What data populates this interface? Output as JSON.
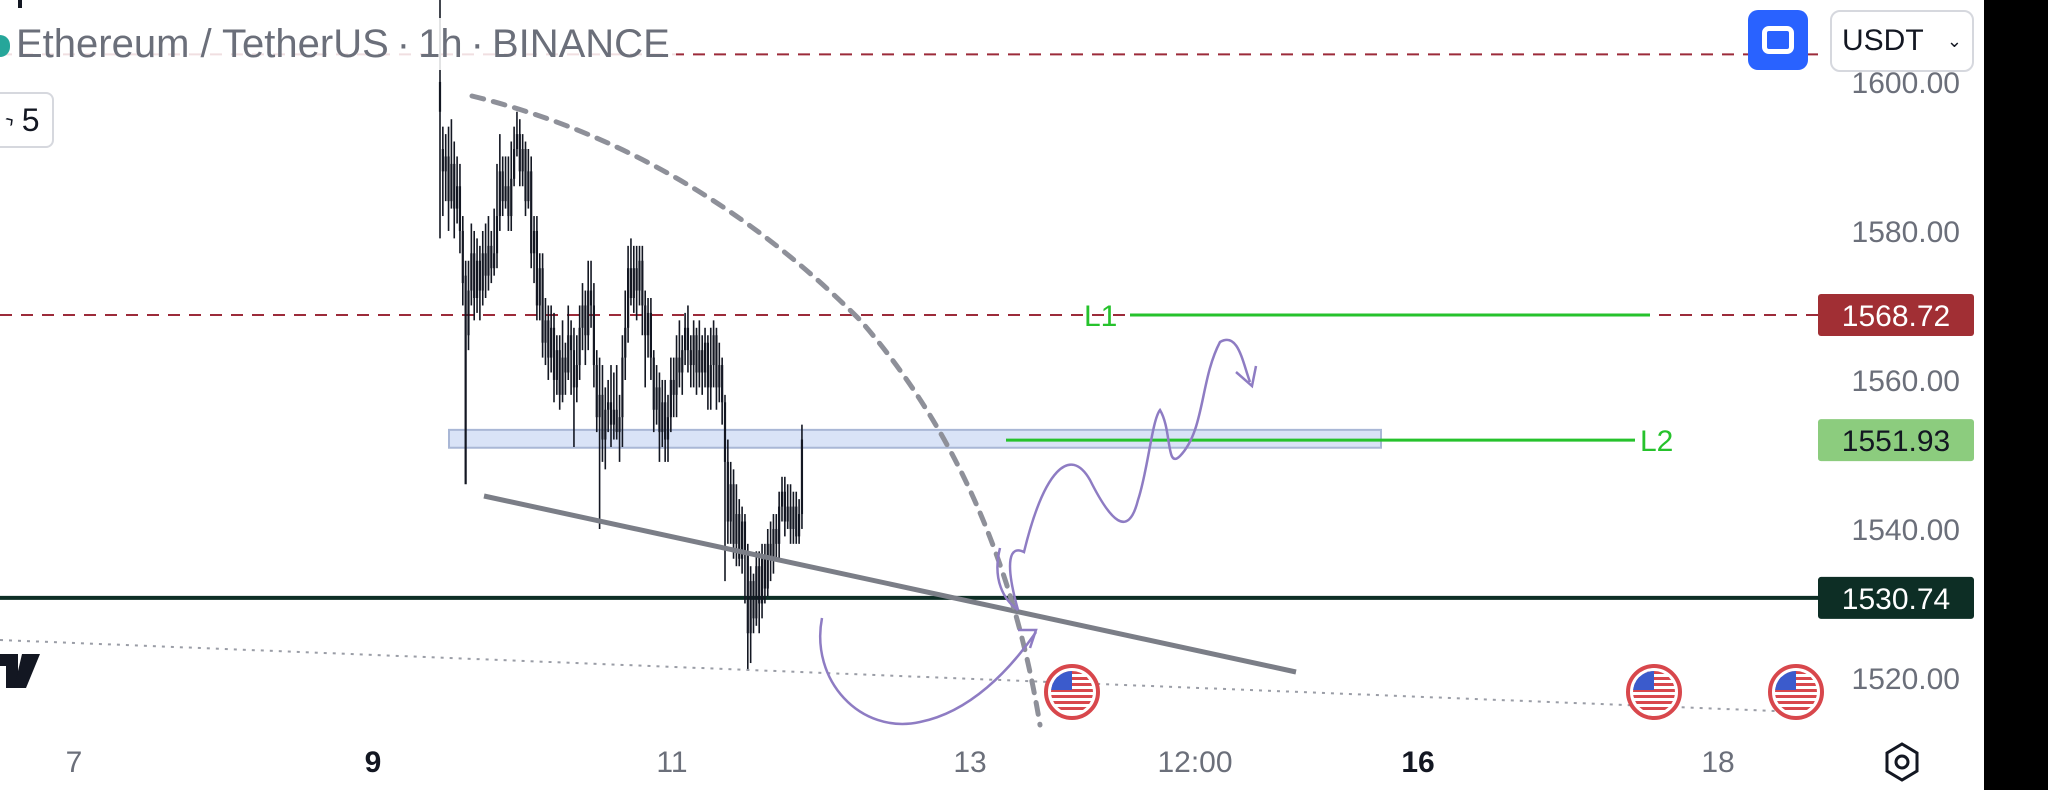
{
  "header": {
    "symbol": "Ethereum / TetherUS",
    "interval": "1h",
    "exchange": "BINANCE",
    "separator": "·",
    "interval_count": "5"
  },
  "toolbar": {
    "currency": "USDT",
    "fullscreen_icon": "fullscreen-icon",
    "settings_icon": "settings-icon",
    "dropdown_icon": "chevron-down-icon"
  },
  "colors": {
    "candle": "#131722",
    "grid_text": "#6b6f7a",
    "resistance_line": "#9c2b3a",
    "support_line": "#0d2e25",
    "target_line": "#26c22c",
    "trend_line": "#7b7e87",
    "projection": "#8e7cc3",
    "zone_fill": "#d9e3f7",
    "zone_stroke": "#a9b7d6",
    "label_red": "#a12f34",
    "label_green": "#8ccc7e",
    "label_dark": "#0d2e25"
  },
  "chart_data": {
    "type": "candlestick",
    "x_ticks": [
      {
        "label": "7",
        "bold": false
      },
      {
        "label": "9",
        "bold": true
      },
      {
        "label": "11",
        "bold": false
      },
      {
        "label": "13",
        "bold": false
      },
      {
        "label": "12:00",
        "bold": false
      },
      {
        "label": "16",
        "bold": true
      },
      {
        "label": "18",
        "bold": false
      }
    ],
    "y_ticks": [
      1520,
      1540,
      1560,
      1580,
      1600
    ],
    "ylim": [
      1512,
      1611
    ],
    "price_labels": [
      {
        "value": "1568.72",
        "style": "red"
      },
      {
        "value": "1551.93",
        "style": "green"
      },
      {
        "value": "1530.74",
        "style": "dark"
      }
    ],
    "horizontal_levels": [
      {
        "price": 1603.7,
        "style": "dashed",
        "color": "resistance_line"
      },
      {
        "price": 1568.72,
        "style": "dashed",
        "color": "resistance_line"
      },
      {
        "price": 1530.74,
        "style": "solid",
        "color": "support_line"
      }
    ],
    "targets": [
      {
        "name": "L1",
        "price": 1568.72
      },
      {
        "name": "L2",
        "price": 1551.93
      }
    ],
    "zone": {
      "low": 1550.9,
      "high": 1553.3
    },
    "events": [
      {
        "icon": "us-flag-icon"
      },
      {
        "icon": "us-flag-icon"
      },
      {
        "icon": "us-flag-icon"
      }
    ],
    "candles": [
      [
        1600,
        1596,
        1611,
        1579
      ],
      [
        1591,
        1588,
        1594,
        1582
      ],
      [
        1588,
        1590,
        1593,
        1584
      ],
      [
        1590,
        1584,
        1594,
        1580
      ],
      [
        1584,
        1589,
        1595,
        1583
      ],
      [
        1589,
        1583,
        1592,
        1579
      ],
      [
        1583,
        1586,
        1590,
        1581
      ],
      [
        1586,
        1580,
        1589,
        1577
      ],
      [
        1580,
        1573,
        1582,
        1570
      ],
      [
        1574,
        1546,
        1576,
        1547
      ],
      [
        1566,
        1572,
        1576,
        1564
      ],
      [
        1572,
        1577,
        1581,
        1570
      ],
      [
        1577,
        1571,
        1580,
        1568
      ],
      [
        1571,
        1576,
        1579,
        1569
      ],
      [
        1576,
        1572,
        1578,
        1568
      ],
      [
        1572,
        1577,
        1580,
        1570
      ],
      [
        1577,
        1574,
        1581,
        1571
      ],
      [
        1574,
        1578,
        1582,
        1572
      ],
      [
        1578,
        1575,
        1580,
        1573
      ],
      [
        1575,
        1577,
        1583,
        1574
      ],
      [
        1577,
        1582,
        1589,
        1575
      ],
      [
        1582,
        1588,
        1593,
        1580
      ],
      [
        1588,
        1584,
        1590,
        1582
      ],
      [
        1584,
        1586,
        1590,
        1583
      ],
      [
        1586,
        1582,
        1590,
        1580
      ],
      [
        1582,
        1587,
        1592,
        1580
      ],
      [
        1587,
        1591,
        1594,
        1586
      ],
      [
        1591,
        1593,
        1596,
        1590
      ],
      [
        1593,
        1588,
        1595,
        1586
      ],
      [
        1588,
        1591,
        1593,
        1586
      ],
      [
        1591,
        1584,
        1592,
        1582
      ],
      [
        1584,
        1588,
        1591,
        1583
      ],
      [
        1588,
        1577,
        1590,
        1575
      ],
      [
        1577,
        1580,
        1582,
        1573
      ],
      [
        1580,
        1570,
        1582,
        1568
      ],
      [
        1570,
        1575,
        1577,
        1568
      ],
      [
        1575,
        1565,
        1577,
        1563
      ],
      [
        1565,
        1568,
        1571,
        1562
      ],
      [
        1568,
        1563,
        1570,
        1560
      ],
      [
        1563,
        1567,
        1570,
        1561
      ],
      [
        1567,
        1560,
        1569,
        1557
      ],
      [
        1560,
        1564,
        1566,
        1558
      ],
      [
        1564,
        1558,
        1566,
        1556
      ],
      [
        1558,
        1563,
        1568,
        1557
      ],
      [
        1563,
        1561,
        1565,
        1558
      ],
      [
        1561,
        1566,
        1570,
        1560
      ],
      [
        1566,
        1564,
        1568,
        1558
      ],
      [
        1564,
        1559,
        1567,
        1551
      ],
      [
        1559,
        1562,
        1566,
        1557
      ],
      [
        1562,
        1567,
        1570,
        1560
      ],
      [
        1567,
        1570,
        1573,
        1564
      ],
      [
        1570,
        1566,
        1572,
        1562
      ],
      [
        1566,
        1572,
        1576,
        1564
      ],
      [
        1572,
        1570,
        1576,
        1567
      ],
      [
        1570,
        1562,
        1573,
        1559
      ],
      [
        1562,
        1555,
        1564,
        1553
      ],
      [
        1555,
        1558,
        1563,
        1540
      ],
      [
        1558,
        1552,
        1562,
        1549
      ],
      [
        1552,
        1556,
        1559,
        1548
      ],
      [
        1556,
        1557,
        1560,
        1553
      ],
      [
        1557,
        1554,
        1562,
        1551
      ],
      [
        1554,
        1556,
        1561,
        1552
      ],
      [
        1556,
        1553,
        1562,
        1552
      ],
      [
        1553,
        1555,
        1558,
        1549
      ],
      [
        1555,
        1563,
        1566,
        1551
      ],
      [
        1563,
        1567,
        1572,
        1560
      ],
      [
        1567,
        1575,
        1578,
        1565
      ],
      [
        1575,
        1571,
        1579,
        1570
      ],
      [
        1571,
        1575,
        1578,
        1569
      ],
      [
        1575,
        1572,
        1578,
        1568
      ],
      [
        1572,
        1576,
        1578,
        1570
      ],
      [
        1576,
        1570,
        1578,
        1566
      ],
      [
        1570,
        1566,
        1572,
        1559
      ],
      [
        1566,
        1569,
        1571,
        1563
      ],
      [
        1569,
        1563,
        1571,
        1560
      ],
      [
        1563,
        1556,
        1564,
        1553
      ],
      [
        1556,
        1559,
        1562,
        1554
      ],
      [
        1559,
        1553,
        1561,
        1549
      ],
      [
        1553,
        1557,
        1560,
        1551
      ],
      [
        1557,
        1552,
        1560,
        1549
      ],
      [
        1552,
        1555,
        1558,
        1549
      ],
      [
        1555,
        1560,
        1563,
        1553
      ],
      [
        1560,
        1558,
        1563,
        1555
      ],
      [
        1558,
        1563,
        1566,
        1555
      ],
      [
        1563,
        1561,
        1568,
        1559
      ],
      [
        1561,
        1564,
        1566,
        1558
      ],
      [
        1564,
        1567,
        1569,
        1562
      ],
      [
        1567,
        1564,
        1570,
        1561
      ],
      [
        1564,
        1562,
        1566,
        1559
      ],
      [
        1562,
        1566,
        1568,
        1559
      ],
      [
        1566,
        1561,
        1567,
        1558
      ],
      [
        1561,
        1564,
        1568,
        1559
      ],
      [
        1564,
        1561,
        1566,
        1558
      ],
      [
        1561,
        1565,
        1567,
        1559
      ],
      [
        1565,
        1559,
        1566,
        1556
      ],
      [
        1559,
        1562,
        1567,
        1556
      ],
      [
        1562,
        1566,
        1568,
        1559
      ],
      [
        1566,
        1559,
        1567,
        1556
      ],
      [
        1559,
        1562,
        1565,
        1557
      ],
      [
        1562,
        1557,
        1563,
        1554
      ],
      [
        1557,
        1549,
        1558,
        1533
      ],
      [
        1549,
        1541,
        1552,
        1538
      ],
      [
        1541,
        1546,
        1549,
        1538
      ],
      [
        1546,
        1538,
        1548,
        1536
      ],
      [
        1538,
        1542,
        1546,
        1535
      ],
      [
        1542,
        1536,
        1544,
        1535
      ],
      [
        1536,
        1541,
        1543,
        1534
      ],
      [
        1541,
        1537,
        1542,
        1530
      ],
      [
        1537,
        1526,
        1538,
        1521
      ],
      [
        1526,
        1533,
        1535,
        1522
      ],
      [
        1533,
        1528,
        1534,
        1526
      ],
      [
        1528,
        1535,
        1537,
        1527
      ],
      [
        1535,
        1530,
        1537,
        1526
      ],
      [
        1530,
        1536,
        1538,
        1528
      ],
      [
        1536,
        1532,
        1538,
        1530
      ],
      [
        1532,
        1538,
        1540,
        1531
      ],
      [
        1538,
        1536,
        1541,
        1533
      ],
      [
        1536,
        1540,
        1542,
        1534
      ],
      [
        1540,
        1538,
        1542,
        1536
      ],
      [
        1538,
        1543,
        1545,
        1536
      ],
      [
        1543,
        1545,
        1547,
        1541
      ],
      [
        1545,
        1541,
        1547,
        1539
      ],
      [
        1541,
        1543,
        1546,
        1540
      ],
      [
        1543,
        1540,
        1546,
        1538
      ],
      [
        1540,
        1543,
        1545,
        1538
      ],
      [
        1543,
        1539,
        1545,
        1538
      ],
      [
        1539,
        1542,
        1544,
        1538
      ],
      [
        1542,
        1552,
        1554,
        1540
      ]
    ]
  }
}
